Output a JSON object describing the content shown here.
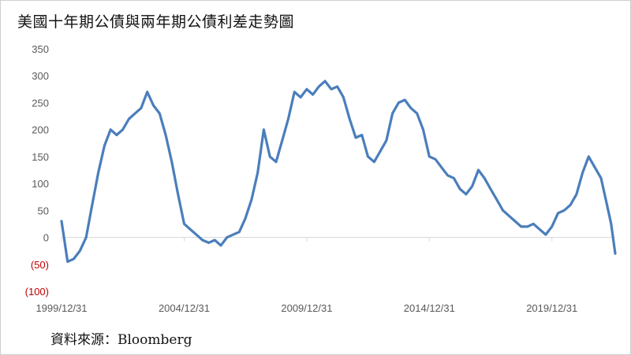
{
  "title": "美國十年期公債與兩年期公債利差走勢圖",
  "source": "資料來源：Bloomberg",
  "colors": {
    "line": "#4a7ebb",
    "negative_tick": "#c00000",
    "tick": "#595959",
    "axis": "#d9d9d9"
  },
  "chart_data": {
    "type": "line",
    "title": "美國十年期公債與兩年期公債利差走勢圖",
    "xlabel": "",
    "ylabel": "",
    "ylim": [
      -100,
      350
    ],
    "y_ticks": [
      350,
      300,
      250,
      200,
      150,
      100,
      50,
      0,
      -50,
      -100
    ],
    "y_tick_labels": [
      "350",
      "300",
      "250",
      "200",
      "150",
      "100",
      "50",
      "0",
      "(50)",
      "(100)"
    ],
    "x_tick_labels": [
      "1999/12/31",
      "2004/12/31",
      "2009/12/31",
      "2014/12/31",
      "2019/12/31"
    ],
    "xlim": [
      "1999-12-31",
      "2022-07-31"
    ],
    "grid": false,
    "series": [
      {
        "x": [
          "1999-12-31",
          "2000-01-31",
          "2000-03-31",
          "2000-06-30",
          "2000-09-30",
          "2000-12-31",
          "2001-03-31",
          "2001-06-30",
          "2001-09-30",
          "2001-12-31",
          "2002-03-31",
          "2002-06-30",
          "2002-09-30",
          "2002-12-31",
          "2003-03-31",
          "2003-06-30",
          "2003-09-30",
          "2003-12-31",
          "2004-03-31",
          "2004-06-30",
          "2004-09-30",
          "2004-12-31",
          "2005-03-31",
          "2005-06-30",
          "2005-09-30",
          "2005-12-31",
          "2006-03-31",
          "2006-06-30",
          "2006-09-30",
          "2006-12-31",
          "2007-03-31",
          "2007-06-30",
          "2007-09-30",
          "2007-12-31",
          "2008-03-31",
          "2008-06-30",
          "2008-09-30",
          "2008-12-31",
          "2009-03-31",
          "2009-06-30",
          "2009-09-30",
          "2009-12-31",
          "2010-03-31",
          "2010-06-30",
          "2010-09-30",
          "2010-12-31",
          "2011-03-31",
          "2011-06-30",
          "2011-09-30",
          "2011-12-31",
          "2012-03-31",
          "2012-06-30",
          "2012-09-30",
          "2012-12-31",
          "2013-03-31",
          "2013-06-30",
          "2013-09-30",
          "2013-12-31",
          "2014-03-31",
          "2014-06-30",
          "2014-09-30",
          "2014-12-31",
          "2015-03-31",
          "2015-06-30",
          "2015-09-30",
          "2015-12-31",
          "2016-03-31",
          "2016-06-30",
          "2016-09-30",
          "2016-12-31",
          "2017-03-31",
          "2017-06-30",
          "2017-09-30",
          "2017-12-31",
          "2018-03-31",
          "2018-06-30",
          "2018-09-30",
          "2018-12-31",
          "2019-03-31",
          "2019-06-30",
          "2019-09-30",
          "2019-12-31",
          "2020-03-31",
          "2020-06-30",
          "2020-09-30",
          "2020-12-31",
          "2021-03-31",
          "2021-06-30",
          "2021-09-30",
          "2021-12-31",
          "2022-03-31",
          "2022-05-31",
          "2022-07-31"
        ],
        "values": [
          30,
          5,
          -45,
          -40,
          -25,
          0,
          60,
          120,
          170,
          200,
          190,
          200,
          220,
          230,
          240,
          270,
          245,
          230,
          190,
          140,
          80,
          25,
          15,
          5,
          -5,
          -10,
          -5,
          -15,
          0,
          5,
          10,
          35,
          70,
          120,
          200,
          150,
          140,
          180,
          220,
          270,
          260,
          275,
          265,
          280,
          290,
          275,
          280,
          260,
          220,
          185,
          190,
          150,
          140,
          160,
          180,
          230,
          250,
          255,
          240,
          230,
          200,
          150,
          145,
          130,
          115,
          110,
          90,
          80,
          95,
          125,
          110,
          90,
          70,
          50,
          40,
          30,
          20,
          20,
          25,
          15,
          5,
          20,
          45,
          50,
          60,
          80,
          120,
          150,
          130,
          110,
          60,
          25,
          -30
        ]
      }
    ]
  }
}
